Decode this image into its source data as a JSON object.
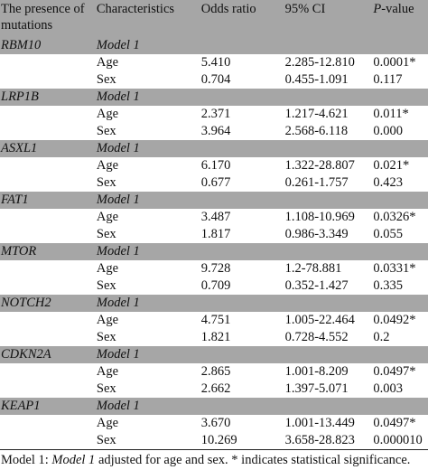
{
  "header": {
    "gene": "The presence of mutations",
    "characteristics": "Characteristics",
    "odds_ratio": "Odds ratio",
    "ci": "95% CI",
    "p_value_letter": "P",
    "p_value_rest": "-value"
  },
  "groups": [
    {
      "gene": "RBM10",
      "model": "Model 1",
      "rows": [
        {
          "char": "Age",
          "or": "5.410",
          "ci": "2.285-12.810",
          "p": "0.0001*"
        },
        {
          "char": "Sex",
          "or": "0.704",
          "ci": "0.455-1.091",
          "p": "0.117"
        }
      ]
    },
    {
      "gene": "LRP1B",
      "model": "Model 1",
      "rows": [
        {
          "char": "Age",
          "or": "2.371",
          "ci": "1.217-4.621",
          "p": "0.011*"
        },
        {
          "char": "Sex",
          "or": "3.964",
          "ci": "2.568-6.118",
          "p": "0.000"
        }
      ]
    },
    {
      "gene": "ASXL1",
      "model": "Model 1",
      "rows": [
        {
          "char": "Age",
          "or": "6.170",
          "ci": "1.322-28.807",
          "p": "0.021*"
        },
        {
          "char": "Sex",
          "or": "0.677",
          "ci": "0.261-1.757",
          "p": "0.423"
        }
      ]
    },
    {
      "gene": "FAT1",
      "model": "Model 1",
      "rows": [
        {
          "char": "Age",
          "or": "3.487",
          "ci": "1.108-10.969",
          "p": "0.0326*"
        },
        {
          "char": "Sex",
          "or": "1.817",
          "ci": "0.986-3.349",
          "p": "0.055"
        }
      ]
    },
    {
      "gene": "MTOR",
      "model": "Model 1",
      "rows": [
        {
          "char": "Age",
          "or": "9.728",
          "ci": "1.2-78.881",
          "p": "0.0331*"
        },
        {
          "char": "Sex",
          "or": "0.709",
          "ci": "0.352-1.427",
          "p": "0.335"
        }
      ]
    },
    {
      "gene": "NOTCH2",
      "model": "Model 1",
      "rows": [
        {
          "char": "Age",
          "or": "4.751",
          "ci": "1.005-22.464",
          "p": "0.0492*"
        },
        {
          "char": "Sex",
          "or": "1.821",
          "ci": "0.728-4.552",
          "p": "0.2"
        }
      ]
    },
    {
      "gene": "CDKN2A",
      "model": "Model 1",
      "rows": [
        {
          "char": "Age",
          "or": "2.865",
          "ci": "1.001-8.209",
          "p": "0.0497*"
        },
        {
          "char": "Sex",
          "or": "2.662",
          "ci": "1.397-5.071",
          "p": "0.003"
        }
      ]
    },
    {
      "gene": "KEAP1",
      "model": "Model 1",
      "rows": [
        {
          "char": "Age",
          "or": "3.670",
          "ci": "1.001-13.449",
          "p": "0.0497*"
        },
        {
          "char": "Sex",
          "or": "10.269",
          "ci": "3.658-28.823",
          "p": "0.000010"
        }
      ]
    }
  ],
  "footer": {
    "prefix": "Model 1: ",
    "model_italic": "Model 1",
    "suffix": " adjusted for age and sex. * indicates statistical significance."
  },
  "colors": {
    "gray_band": "#a6a6a6",
    "text": "#111111",
    "background": "#ffffff"
  }
}
